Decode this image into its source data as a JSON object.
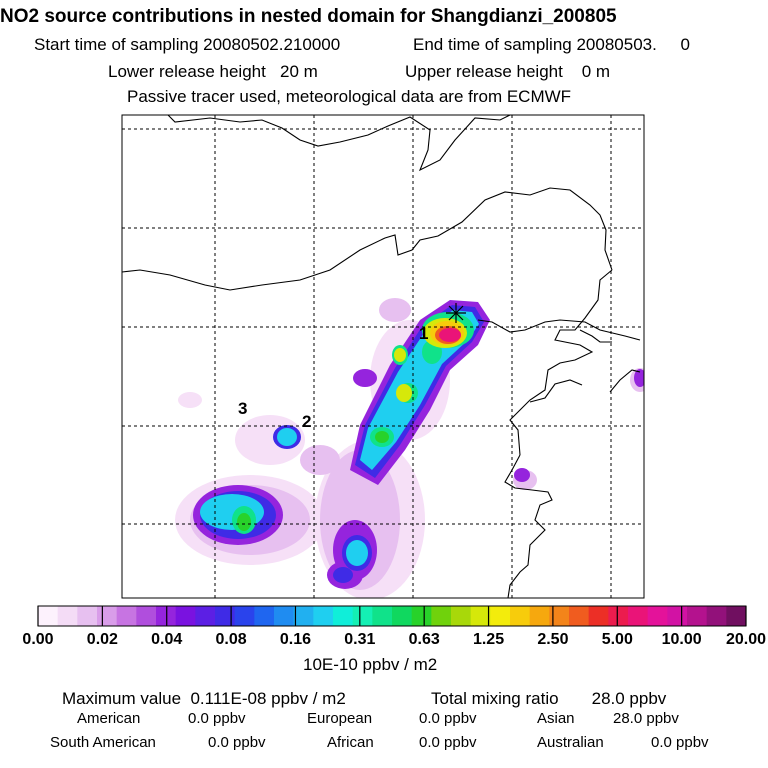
{
  "header": {
    "title": "NO2 source contributions in nested domain for Shangdianzi_200805",
    "start_sampling": "Start time of sampling 20080502.210000",
    "end_sampling": "End time of sampling 20080503.     0",
    "lower_release": "Lower release height   20 m",
    "upper_release": "Upper release height    0 m",
    "tracer_note": "Passive tracer used, meteorological data are from ECMWF"
  },
  "map": {
    "site_labels": [
      "1",
      "2",
      "3"
    ],
    "site_marker_icon": "asterisk-star-icon"
  },
  "colorbar": {
    "colors": [
      "#fdf2fd",
      "#f4dcf6",
      "#e7c0f0",
      "#d99de9",
      "#c774e2",
      "#b04edd",
      "#9524dd",
      "#7a12e0",
      "#5c1fe4",
      "#3f2be6",
      "#2a43ec",
      "#1f66f0",
      "#1f8cf1",
      "#21b0f0",
      "#1fcff0",
      "#10eed9",
      "#14f0b4",
      "#10e28a",
      "#10d85f",
      "#28d22a",
      "#70d20c",
      "#a8d80a",
      "#d6e80a",
      "#f3ec0c",
      "#f7cc0c",
      "#f6a80e",
      "#f3841a",
      "#f05c1f",
      "#ec2f26",
      "#ec1c4e",
      "#ea1478",
      "#e4129a",
      "#d212a4",
      "#b4128e",
      "#92117a",
      "#700f60"
    ],
    "tick_labels": [
      "0.00",
      "0.02",
      "0.04",
      "0.08",
      "0.16",
      "0.31",
      "0.63",
      "1.25",
      "2.50",
      "5.00",
      "10.00",
      "20.00"
    ],
    "unit": "10E-10 ppbv / m2"
  },
  "summary": {
    "maximum_value": "Maximum value  0.111E-08 ppbv / m2",
    "total_mixing": "Total mixing ratio       28.0 ppbv",
    "rows": [
      [
        {
          "label": "American",
          "value": "0.0 ppbv"
        },
        {
          "label": "European",
          "value": "0.0 ppbv"
        },
        {
          "label": "Asian",
          "value": "28.0 ppbv"
        }
      ],
      [
        {
          "label": "South American",
          "value": "0.0 ppbv"
        },
        {
          "label": "African",
          "value": "0.0 ppbv"
        },
        {
          "label": "Australian",
          "value": "0.0 ppbv"
        }
      ]
    ]
  }
}
